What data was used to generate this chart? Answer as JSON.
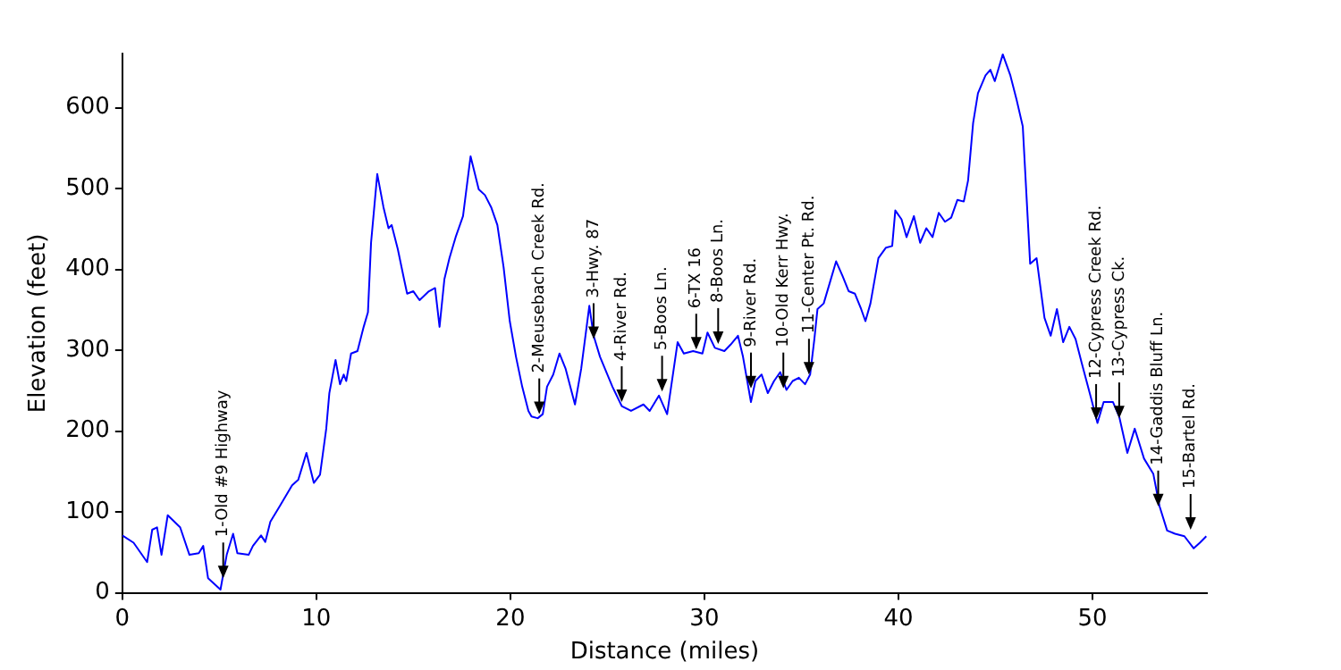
{
  "chart_data": {
    "type": "line",
    "xlabel": "Distance (miles)",
    "ylabel": "Elevation (feet)",
    "xlim": [
      0,
      55.9
    ],
    "ylim": [
      0,
      667
    ],
    "xticks": [
      0,
      10,
      20,
      30,
      40,
      50
    ],
    "yticks": [
      0,
      100,
      200,
      300,
      400,
      500,
      600
    ],
    "grid": false,
    "legend": false,
    "marker": "none",
    "line_style": "solid",
    "series": [
      {
        "color": "#0000ff",
        "x": [
          0,
          0.58,
          1.28,
          1.54,
          1.79,
          2.02,
          2.34,
          2.98,
          3.46,
          3.94,
          4.17,
          4.42,
          5.06,
          5.38,
          5.71,
          5.93,
          6.51,
          6.73,
          7.15,
          7.37,
          7.63,
          8.11,
          8.75,
          9.07,
          9.49,
          9.87,
          10.19,
          10.51,
          10.67,
          10.99,
          11.22,
          11.41,
          11.54,
          11.79,
          12.12,
          12.44,
          12.66,
          12.82,
          13.14,
          13.46,
          13.72,
          13.88,
          14.2,
          14.52,
          14.68,
          15.0,
          15.32,
          15.8,
          16.12,
          16.35,
          16.6,
          16.86,
          17.18,
          17.56,
          17.95,
          18.37,
          18.69,
          19.01,
          19.33,
          19.65,
          19.97,
          20.29,
          20.61,
          20.93,
          21.09,
          21.41,
          21.67,
          21.89,
          22.21,
          22.53,
          22.85,
          23.33,
          23.65,
          24.07,
          24.29,
          24.62,
          25.26,
          25.74,
          26.22,
          26.86,
          27.18,
          27.66,
          28.08,
          28.62,
          28.94,
          29.42,
          29.9,
          30.16,
          30.54,
          31.03,
          31.35,
          31.73,
          31.99,
          32.4,
          32.63,
          32.95,
          33.27,
          33.59,
          33.91,
          34.23,
          34.55,
          34.87,
          35.19,
          35.45,
          35.67,
          35.83,
          36.15,
          36.47,
          36.79,
          37.12,
          37.44,
          37.76,
          38.08,
          38.3,
          38.56,
          38.97,
          39.36,
          39.68,
          39.84,
          40.16,
          40.42,
          40.8,
          41.12,
          41.44,
          41.76,
          42.08,
          42.4,
          42.72,
          43.04,
          43.37,
          43.59,
          43.85,
          44.1,
          44.49,
          44.74,
          44.97,
          45.38,
          45.77,
          46.09,
          46.41,
          46.79,
          47.12,
          47.53,
          47.85,
          48.17,
          48.49,
          48.81,
          49.13,
          49.45,
          49.94,
          50.26,
          50.58,
          51.06,
          51.38,
          51.8,
          52.18,
          52.66,
          53.14,
          53.46,
          53.85,
          54.26,
          54.74,
          55.22,
          55.54,
          55.87
        ],
        "values": [
          71,
          62,
          38,
          78,
          81,
          47,
          96,
          81,
          47,
          49,
          58,
          18,
          4,
          47,
          73,
          49,
          47,
          58,
          71,
          63,
          88,
          107,
          133,
          140,
          173,
          136,
          146,
          203,
          247,
          288,
          258,
          270,
          262,
          296,
          299,
          329,
          347,
          433,
          518,
          477,
          451,
          455,
          425,
          388,
          370,
          373,
          362,
          373,
          377,
          329,
          388,
          414,
          440,
          466,
          540,
          499,
          492,
          477,
          455,
          403,
          336,
          292,
          255,
          225,
          218,
          216,
          221,
          255,
          270,
          296,
          277,
          233,
          277,
          355,
          318,
          292,
          255,
          231,
          225,
          233,
          225,
          244,
          221,
          310,
          296,
          299,
          296,
          322,
          303,
          299,
          307,
          318,
          292,
          236,
          262,
          270,
          247,
          262,
          273,
          251,
          262,
          266,
          258,
          270,
          314,
          351,
          358,
          384,
          410,
          392,
          373,
          370,
          351,
          336,
          358,
          414,
          427,
          429,
          473,
          462,
          440,
          466,
          433,
          451,
          440,
          470,
          459,
          464,
          486,
          484,
          510,
          581,
          618,
          640,
          647,
          633,
          666,
          640,
          610,
          577,
          407,
          414,
          340,
          318,
          351,
          310,
          329,
          314,
          284,
          240,
          210,
          236,
          236,
          218,
          173,
          203,
          166,
          147,
          107,
          77,
          73,
          70,
          55,
          62,
          70
        ]
      }
    ],
    "annotations": [
      {
        "text": "1-Old #9 Highway",
        "x": 5.2,
        "y": 18
      },
      {
        "text": "2-Meusebach Creek Rd.",
        "x": 21.49,
        "y": 221
      },
      {
        "text": "3-Hwy. 87",
        "x": 24.29,
        "y": 314
      },
      {
        "text": "4-River Rd.",
        "x": 25.74,
        "y": 236
      },
      {
        "text": "5-Boos Ln.",
        "x": 27.82,
        "y": 249
      },
      {
        "text": "6-TX 16",
        "x": 29.58,
        "y": 301
      },
      {
        "text": "8-Boos Ln.",
        "x": 30.71,
        "y": 308
      },
      {
        "text": "9-River Rd.",
        "x": 32.4,
        "y": 253
      },
      {
        "text": "10-Old Kerr Hwy.",
        "x": 34.07,
        "y": 253
      },
      {
        "text": "11-Center Pt. Rd.",
        "x": 35.39,
        "y": 270
      },
      {
        "text": "12-Cypress Creek Rd.",
        "x": 50.19,
        "y": 214
      },
      {
        "text": "13-Cypress Ck.",
        "x": 51.38,
        "y": 216
      },
      {
        "text": "14-Gaddis Bluff Ln.",
        "x": 53.39,
        "y": 107
      },
      {
        "text": "15-Bartel Rd.",
        "x": 55.06,
        "y": 78
      }
    ]
  }
}
